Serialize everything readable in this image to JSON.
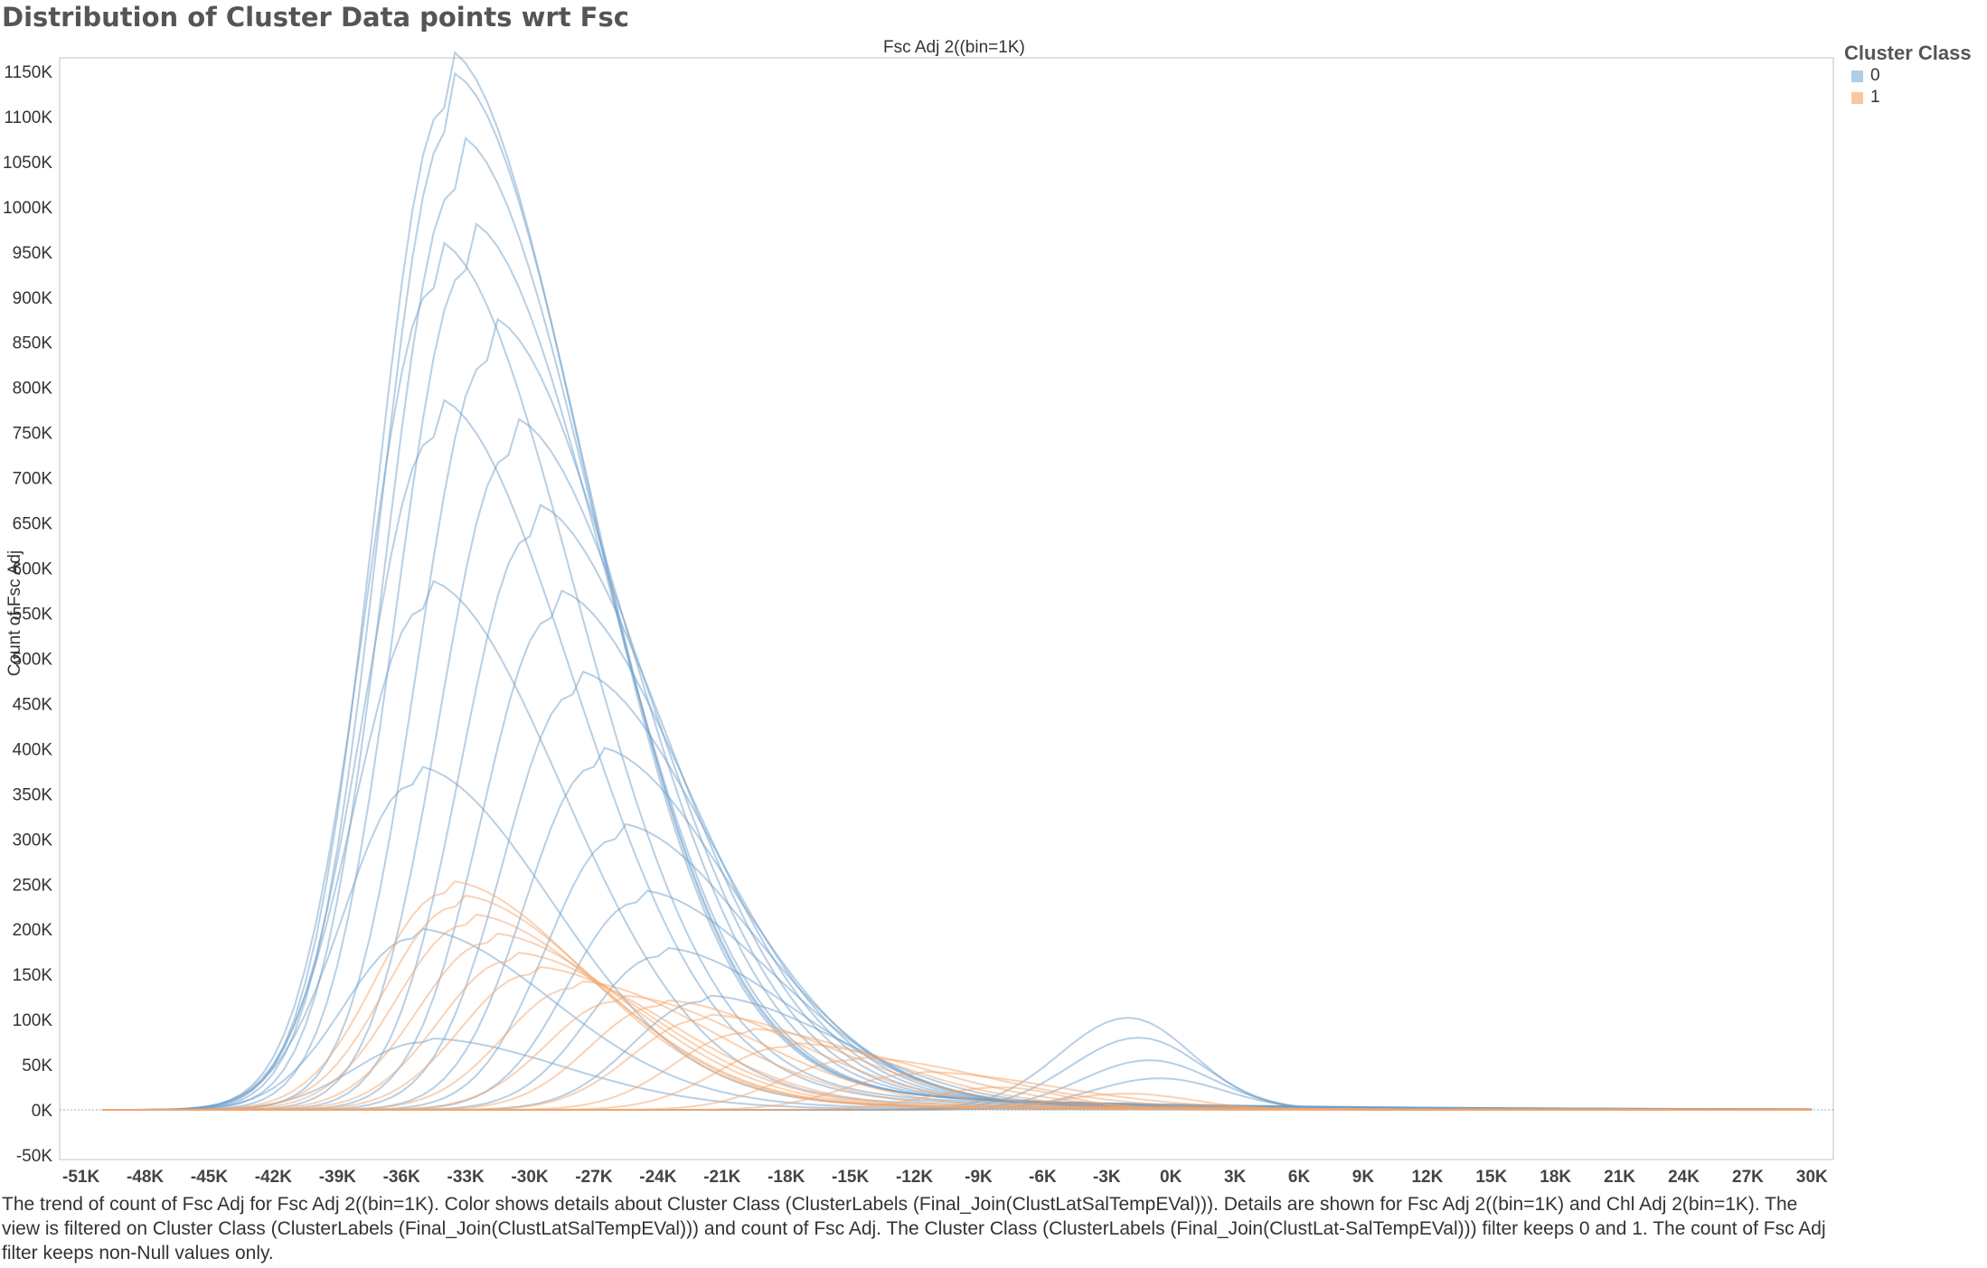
{
  "title": "Distribution of Cluster Data points wrt Fsc",
  "header_field": "Fsc Adj 2((bin=1K)",
  "legend": {
    "title": "Cluster Class",
    "items": [
      {
        "label": "0",
        "color": "#aecde6"
      },
      {
        "label": "1",
        "color": "#f9c79f"
      }
    ]
  },
  "caption": "The trend of count of Fsc Adj for Fsc Adj 2((bin=1K).  Color shows details about Cluster Class (ClusterLabels (Final_Join(ClustLatSalTempEVal))).  Details are shown for Fsc Adj 2((bin=1K) and Chl Adj 2(bin=1K). The view is filtered on Cluster Class (ClusterLabels (Final_Join(ClustLatSalTempEVal))) and count of Fsc Adj. The Cluster Class (ClusterLabels (Final_Join(ClustLat-SalTempEVal))) filter keeps 0 and 1. The count of Fsc Adj filter keeps non-Null values only.",
  "chart_data": {
    "type": "line",
    "title": "Distribution of Cluster Data points wrt Fsc",
    "xlabel": "Fsc Adj 2((bin=1K)",
    "ylabel": "Count of Fsc Adj",
    "xlim": [
      -52,
      31
    ],
    "ylim": [
      -55,
      1165
    ],
    "x_ticks": [
      -51,
      -48,
      -45,
      -42,
      -39,
      -36,
      -33,
      -30,
      -27,
      -24,
      -21,
      -18,
      -15,
      -12,
      -9,
      -6,
      -3,
      0,
      3,
      6,
      9,
      12,
      15,
      18,
      21,
      24,
      27,
      30
    ],
    "x_tick_labels": [
      "-51K",
      "-48K",
      "-45K",
      "-42K",
      "-39K",
      "-36K",
      "-33K",
      "-30K",
      "-27K",
      "-24K",
      "-21K",
      "-18K",
      "-15K",
      "-12K",
      "-9K",
      "-6K",
      "-3K",
      "0K",
      "3K",
      "6K",
      "9K",
      "12K",
      "15K",
      "18K",
      "21K",
      "24K",
      "27K",
      "30K"
    ],
    "y_ticks": [
      -50,
      0,
      50,
      100,
      150,
      200,
      250,
      300,
      350,
      400,
      450,
      500,
      550,
      600,
      650,
      700,
      750,
      800,
      850,
      900,
      950,
      1000,
      1050,
      1100,
      1150
    ],
    "y_tick_labels": [
      "-50K",
      "0K",
      "50K",
      "100K",
      "150K",
      "200K",
      "250K",
      "300K",
      "350K",
      "400K",
      "450K",
      "500K",
      "550K",
      "600K",
      "650K",
      "700K",
      "750K",
      "800K",
      "850K",
      "900K",
      "950K",
      "1000K",
      "1050K",
      "1100K",
      "1150K"
    ],
    "x_range": [
      -50,
      30
    ],
    "x_step": 1,
    "series_note_values_in_thousands": true,
    "grid": false,
    "legend_position": "right",
    "colors": {
      "0": "#6f9fca",
      "1": "#f3a56c"
    },
    "series_0_peaks": [
      {
        "peak_x": -34,
        "peak_y": 1110
      },
      {
        "peak_x": -33.8,
        "peak_y": 1085
      },
      {
        "peak_x": -33.5,
        "peak_y": 1020
      },
      {
        "peak_x": -33,
        "peak_y": 930
      },
      {
        "peak_x": -34.5,
        "peak_y": 910
      },
      {
        "peak_x": -32,
        "peak_y": 830
      },
      {
        "peak_x": -34.5,
        "peak_y": 745
      },
      {
        "peak_x": -31,
        "peak_y": 725
      },
      {
        "peak_x": -30,
        "peak_y": 635
      },
      {
        "peak_x": -35,
        "peak_y": 555
      },
      {
        "peak_x": -29,
        "peak_y": 545
      },
      {
        "peak_x": -28,
        "peak_y": 460
      },
      {
        "peak_x": -27,
        "peak_y": 380
      },
      {
        "peak_x": -35.5,
        "peak_y": 360
      },
      {
        "peak_x": -26,
        "peak_y": 300
      },
      {
        "peak_x": -25,
        "peak_y": 230
      },
      {
        "peak_x": -35.5,
        "peak_y": 190
      },
      {
        "peak_x": -24,
        "peak_y": 170
      },
      {
        "peak_x": -22,
        "peak_y": 120
      },
      {
        "peak_x": -35,
        "peak_y": 75
      },
      {
        "peak_x": -2,
        "peak_y": 102
      },
      {
        "peak_x": -1.5,
        "peak_y": 80
      },
      {
        "peak_x": -1,
        "peak_y": 55
      },
      {
        "peak_x": -0.5,
        "peak_y": 35
      }
    ],
    "series_1_peaks": [
      {
        "peak_x": -34,
        "peak_y": 240
      },
      {
        "peak_x": -33.5,
        "peak_y": 225
      },
      {
        "peak_x": -33,
        "peak_y": 205
      },
      {
        "peak_x": -32,
        "peak_y": 185
      },
      {
        "peak_x": -31,
        "peak_y": 165
      },
      {
        "peak_x": -30,
        "peak_y": 150
      },
      {
        "peak_x": -28,
        "peak_y": 135
      },
      {
        "peak_x": -26,
        "peak_y": 120
      },
      {
        "peak_x": -24,
        "peak_y": 115
      },
      {
        "peak_x": -22,
        "peak_y": 100
      },
      {
        "peak_x": -20,
        "peak_y": 85
      },
      {
        "peak_x": -18,
        "peak_y": 70
      },
      {
        "peak_x": -15,
        "peak_y": 55
      },
      {
        "peak_x": -12,
        "peak_y": 40
      },
      {
        "peak_x": -8,
        "peak_y": 25
      },
      {
        "peak_x": -2,
        "peak_y": 18
      }
    ]
  }
}
